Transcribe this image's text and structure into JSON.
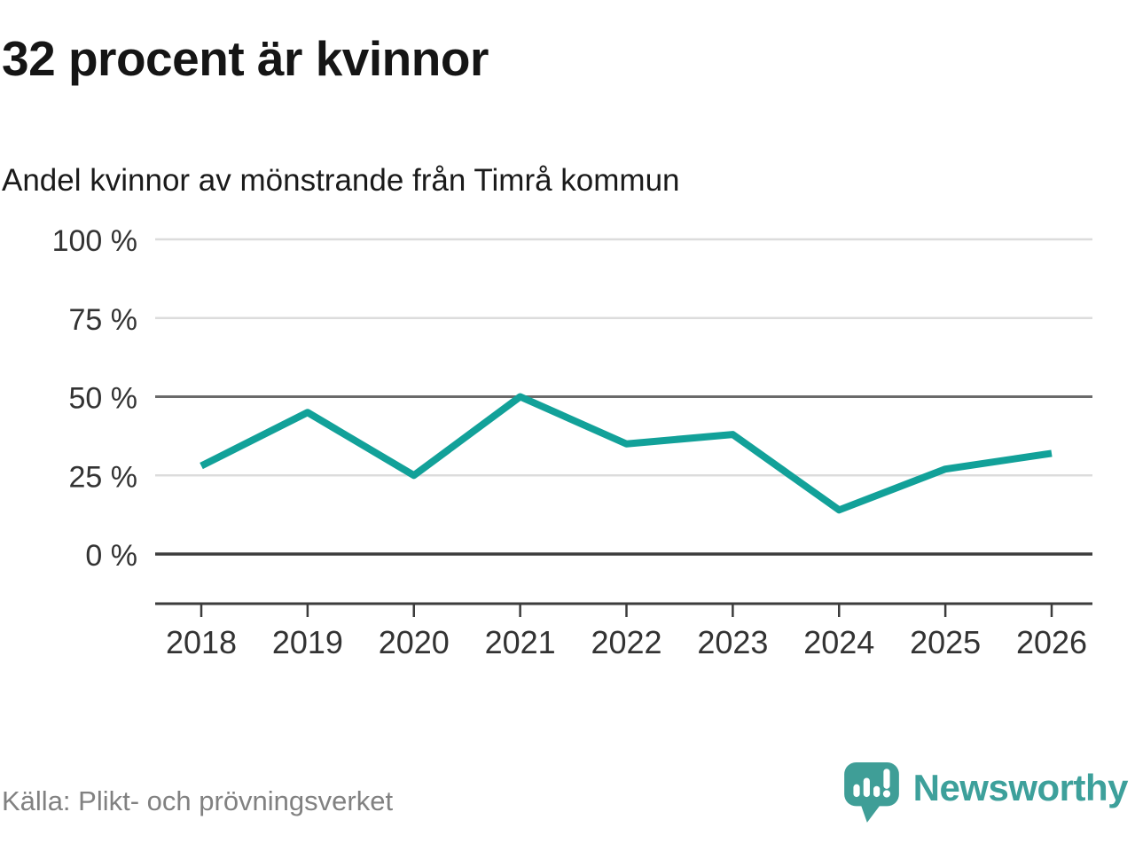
{
  "header": {
    "title": "32 procent är kvinnor",
    "subtitle": "Andel kvinnor av mönstrande från Timrå kommun"
  },
  "chart_data": {
    "type": "line",
    "title": "32 procent är kvinnor",
    "subtitle": "Andel kvinnor av mönstrande från Timrå kommun",
    "x": [
      2018,
      2019,
      2020,
      2021,
      2022,
      2023,
      2024,
      2025,
      2026
    ],
    "series": [
      {
        "name": "Andel kvinnor av mönstrande",
        "values": [
          28,
          45,
          25,
          50,
          35,
          38,
          14,
          27,
          32
        ]
      }
    ],
    "xlabel": "",
    "ylabel": "",
    "ylim": [
      0,
      100
    ],
    "yticks": [
      {
        "value": 100,
        "label": "100 %"
      },
      {
        "value": 75,
        "label": "75 %"
      },
      {
        "value": 50,
        "label": "50 %"
      },
      {
        "value": 25,
        "label": "25 %"
      },
      {
        "value": 0,
        "label": "0 %"
      }
    ],
    "grid": true,
    "gridline_emphasis": {
      "50": "medium",
      "0": "strong"
    },
    "legend_position": "none",
    "line_color": "#12a199"
  },
  "colors": {
    "line": "#12a199",
    "grid_light": "#dcdcdc",
    "grid_medium": "#6a6a6a",
    "grid_strong": "#3c3c3c",
    "axis": "#3c3c3c",
    "tick_label": "#333333",
    "logo_teal": "#3f9e97"
  },
  "footer": {
    "source": "Källa: Plikt- och prövningsverket",
    "logo_text": "Newsworthy"
  }
}
